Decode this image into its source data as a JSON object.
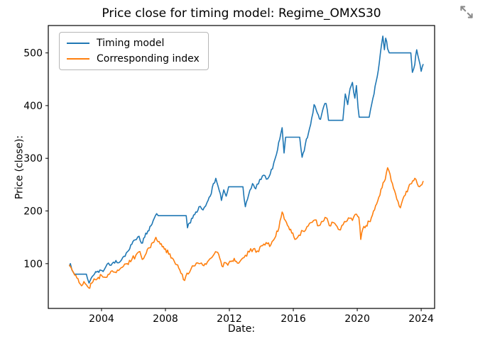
{
  "lightbox": {
    "expand_icon": "expand-arrows",
    "icon_color": "#6f6f6f"
  },
  "chart_data": {
    "type": "line",
    "title": "Price close for timing model: Regime_OMXS30",
    "xlabel": "Date:",
    "ylabel": "Price (close):",
    "xlim": [
      2000.67,
      2024.84
    ],
    "ylim": [
      15,
      552
    ],
    "xticks": [
      2004,
      2008,
      2012,
      2016,
      2020,
      2024
    ],
    "yticks": [
      100,
      200,
      300,
      400,
      500
    ],
    "grid": false,
    "legend_position": "upper-left",
    "frame_color": "#000000",
    "series": [
      {
        "name": "Timing model",
        "color": "#1f77b4",
        "jitter": 4,
        "points": [
          [
            2002.0,
            96
          ],
          [
            2002.05,
            100
          ],
          [
            2002.15,
            88
          ],
          [
            2002.3,
            80
          ],
          [
            2003.05,
            80
          ],
          [
            2003.12,
            72
          ],
          [
            2003.22,
            63
          ],
          [
            2003.35,
            72
          ],
          [
            2003.5,
            78
          ],
          [
            2003.7,
            84
          ],
          [
            2003.9,
            88
          ],
          [
            2004.1,
            85
          ],
          [
            2004.35,
            99
          ],
          [
            2004.6,
            97
          ],
          [
            2004.9,
            106
          ],
          [
            2005.1,
            102
          ],
          [
            2005.4,
            114
          ],
          [
            2005.7,
            125
          ],
          [
            2005.9,
            137
          ],
          [
            2006.1,
            145
          ],
          [
            2006.35,
            152
          ],
          [
            2006.5,
            139
          ],
          [
            2006.7,
            150
          ],
          [
            2006.9,
            162
          ],
          [
            2007.1,
            172
          ],
          [
            2007.3,
            186
          ],
          [
            2007.45,
            195
          ],
          [
            2007.55,
            191
          ],
          [
            2009.3,
            191
          ],
          [
            2009.38,
            168
          ],
          [
            2009.5,
            177
          ],
          [
            2009.7,
            186
          ],
          [
            2009.9,
            198
          ],
          [
            2010.1,
            208
          ],
          [
            2010.35,
            202
          ],
          [
            2010.6,
            216
          ],
          [
            2010.8,
            228
          ],
          [
            2011.0,
            252
          ],
          [
            2011.15,
            262
          ],
          [
            2011.3,
            246
          ],
          [
            2011.5,
            220
          ],
          [
            2011.65,
            240
          ],
          [
            2011.8,
            228
          ],
          [
            2011.95,
            246
          ],
          [
            2012.85,
            246
          ],
          [
            2013.0,
            208
          ],
          [
            2013.2,
            230
          ],
          [
            2013.45,
            252
          ],
          [
            2013.65,
            242
          ],
          [
            2013.9,
            260
          ],
          [
            2014.15,
            268
          ],
          [
            2014.4,
            261
          ],
          [
            2014.7,
            280
          ],
          [
            2014.95,
            308
          ],
          [
            2015.15,
            336
          ],
          [
            2015.3,
            358
          ],
          [
            2015.42,
            310
          ],
          [
            2015.52,
            340
          ],
          [
            2016.4,
            340
          ],
          [
            2016.55,
            302
          ],
          [
            2016.75,
            326
          ],
          [
            2016.95,
            348
          ],
          [
            2017.15,
            376
          ],
          [
            2017.3,
            402
          ],
          [
            2017.5,
            386
          ],
          [
            2017.7,
            374
          ],
          [
            2017.9,
            398
          ],
          [
            2018.05,
            404
          ],
          [
            2018.2,
            372
          ],
          [
            2019.1,
            372
          ],
          [
            2019.25,
            422
          ],
          [
            2019.4,
            402
          ],
          [
            2019.55,
            432
          ],
          [
            2019.7,
            444
          ],
          [
            2019.85,
            414
          ],
          [
            2019.95,
            438
          ],
          [
            2020.05,
            396
          ],
          [
            2020.12,
            378
          ],
          [
            2020.75,
            378
          ],
          [
            2020.9,
            402
          ],
          [
            2021.05,
            422
          ],
          [
            2021.25,
            455
          ],
          [
            2021.45,
            500
          ],
          [
            2021.6,
            532
          ],
          [
            2021.7,
            506
          ],
          [
            2021.78,
            528
          ],
          [
            2021.9,
            508
          ],
          [
            2022.0,
            500
          ],
          [
            2023.35,
            500
          ],
          [
            2023.45,
            463
          ],
          [
            2023.6,
            478
          ],
          [
            2023.72,
            506
          ],
          [
            2023.85,
            488
          ],
          [
            2024.0,
            465
          ],
          [
            2024.12,
            478
          ]
        ]
      },
      {
        "name": "Corresponding index",
        "color": "#ff7f0e",
        "jitter": 4.5,
        "points": [
          [
            2002.0,
            97
          ],
          [
            2002.1,
            92
          ],
          [
            2002.25,
            83
          ],
          [
            2002.45,
            73
          ],
          [
            2002.6,
            64
          ],
          [
            2002.75,
            58
          ],
          [
            2002.9,
            66
          ],
          [
            2003.05,
            60
          ],
          [
            2003.2,
            54
          ],
          [
            2003.4,
            63
          ],
          [
            2003.6,
            70
          ],
          [
            2003.8,
            74
          ],
          [
            2004.0,
            78
          ],
          [
            2004.25,
            74
          ],
          [
            2004.5,
            80
          ],
          [
            2004.75,
            84
          ],
          [
            2005.0,
            88
          ],
          [
            2005.3,
            93
          ],
          [
            2005.6,
            100
          ],
          [
            2005.9,
            108
          ],
          [
            2006.15,
            116
          ],
          [
            2006.4,
            123
          ],
          [
            2006.55,
            108
          ],
          [
            2006.8,
            120
          ],
          [
            2007.0,
            130
          ],
          [
            2007.2,
            140
          ],
          [
            2007.4,
            150
          ],
          [
            2007.6,
            142
          ],
          [
            2007.8,
            132
          ],
          [
            2008.0,
            128
          ],
          [
            2008.2,
            118
          ],
          [
            2008.5,
            108
          ],
          [
            2008.7,
            98
          ],
          [
            2008.9,
            88
          ],
          [
            2009.05,
            80
          ],
          [
            2009.2,
            68
          ],
          [
            2009.35,
            82
          ],
          [
            2009.6,
            90
          ],
          [
            2009.85,
            96
          ],
          [
            2010.1,
            100
          ],
          [
            2010.4,
            96
          ],
          [
            2010.7,
            106
          ],
          [
            2011.0,
            116
          ],
          [
            2011.2,
            122
          ],
          [
            2011.4,
            110
          ],
          [
            2011.6,
            94
          ],
          [
            2011.75,
            102
          ],
          [
            2011.9,
            97
          ],
          [
            2012.1,
            104
          ],
          [
            2012.3,
            110
          ],
          [
            2012.5,
            101
          ],
          [
            2012.75,
            108
          ],
          [
            2013.0,
            116
          ],
          [
            2013.25,
            122
          ],
          [
            2013.5,
            128
          ],
          [
            2013.75,
            124
          ],
          [
            2014.0,
            134
          ],
          [
            2014.3,
            140
          ],
          [
            2014.6,
            136
          ],
          [
            2014.9,
            152
          ],
          [
            2015.1,
            168
          ],
          [
            2015.3,
            198
          ],
          [
            2015.5,
            182
          ],
          [
            2015.7,
            170
          ],
          [
            2015.9,
            158
          ],
          [
            2016.1,
            146
          ],
          [
            2016.35,
            154
          ],
          [
            2016.6,
            162
          ],
          [
            2016.85,
            170
          ],
          [
            2017.1,
            178
          ],
          [
            2017.35,
            183
          ],
          [
            2017.6,
            172
          ],
          [
            2017.85,
            180
          ],
          [
            2018.05,
            187
          ],
          [
            2018.25,
            172
          ],
          [
            2018.5,
            178
          ],
          [
            2018.75,
            170
          ],
          [
            2018.95,
            164
          ],
          [
            2019.2,
            180
          ],
          [
            2019.45,
            187
          ],
          [
            2019.7,
            182
          ],
          [
            2019.95,
            194
          ],
          [
            2020.1,
            188
          ],
          [
            2020.22,
            146
          ],
          [
            2020.35,
            166
          ],
          [
            2020.55,
            172
          ],
          [
            2020.75,
            180
          ],
          [
            2020.95,
            192
          ],
          [
            2021.15,
            210
          ],
          [
            2021.35,
            226
          ],
          [
            2021.55,
            244
          ],
          [
            2021.75,
            260
          ],
          [
            2021.9,
            282
          ],
          [
            2022.05,
            270
          ],
          [
            2022.2,
            252
          ],
          [
            2022.4,
            232
          ],
          [
            2022.55,
            218
          ],
          [
            2022.7,
            206
          ],
          [
            2022.85,
            222
          ],
          [
            2023.0,
            230
          ],
          [
            2023.2,
            244
          ],
          [
            2023.4,
            252
          ],
          [
            2023.6,
            262
          ],
          [
            2023.75,
            252
          ],
          [
            2023.9,
            246
          ],
          [
            2024.05,
            250
          ],
          [
            2024.12,
            256
          ]
        ]
      }
    ]
  }
}
